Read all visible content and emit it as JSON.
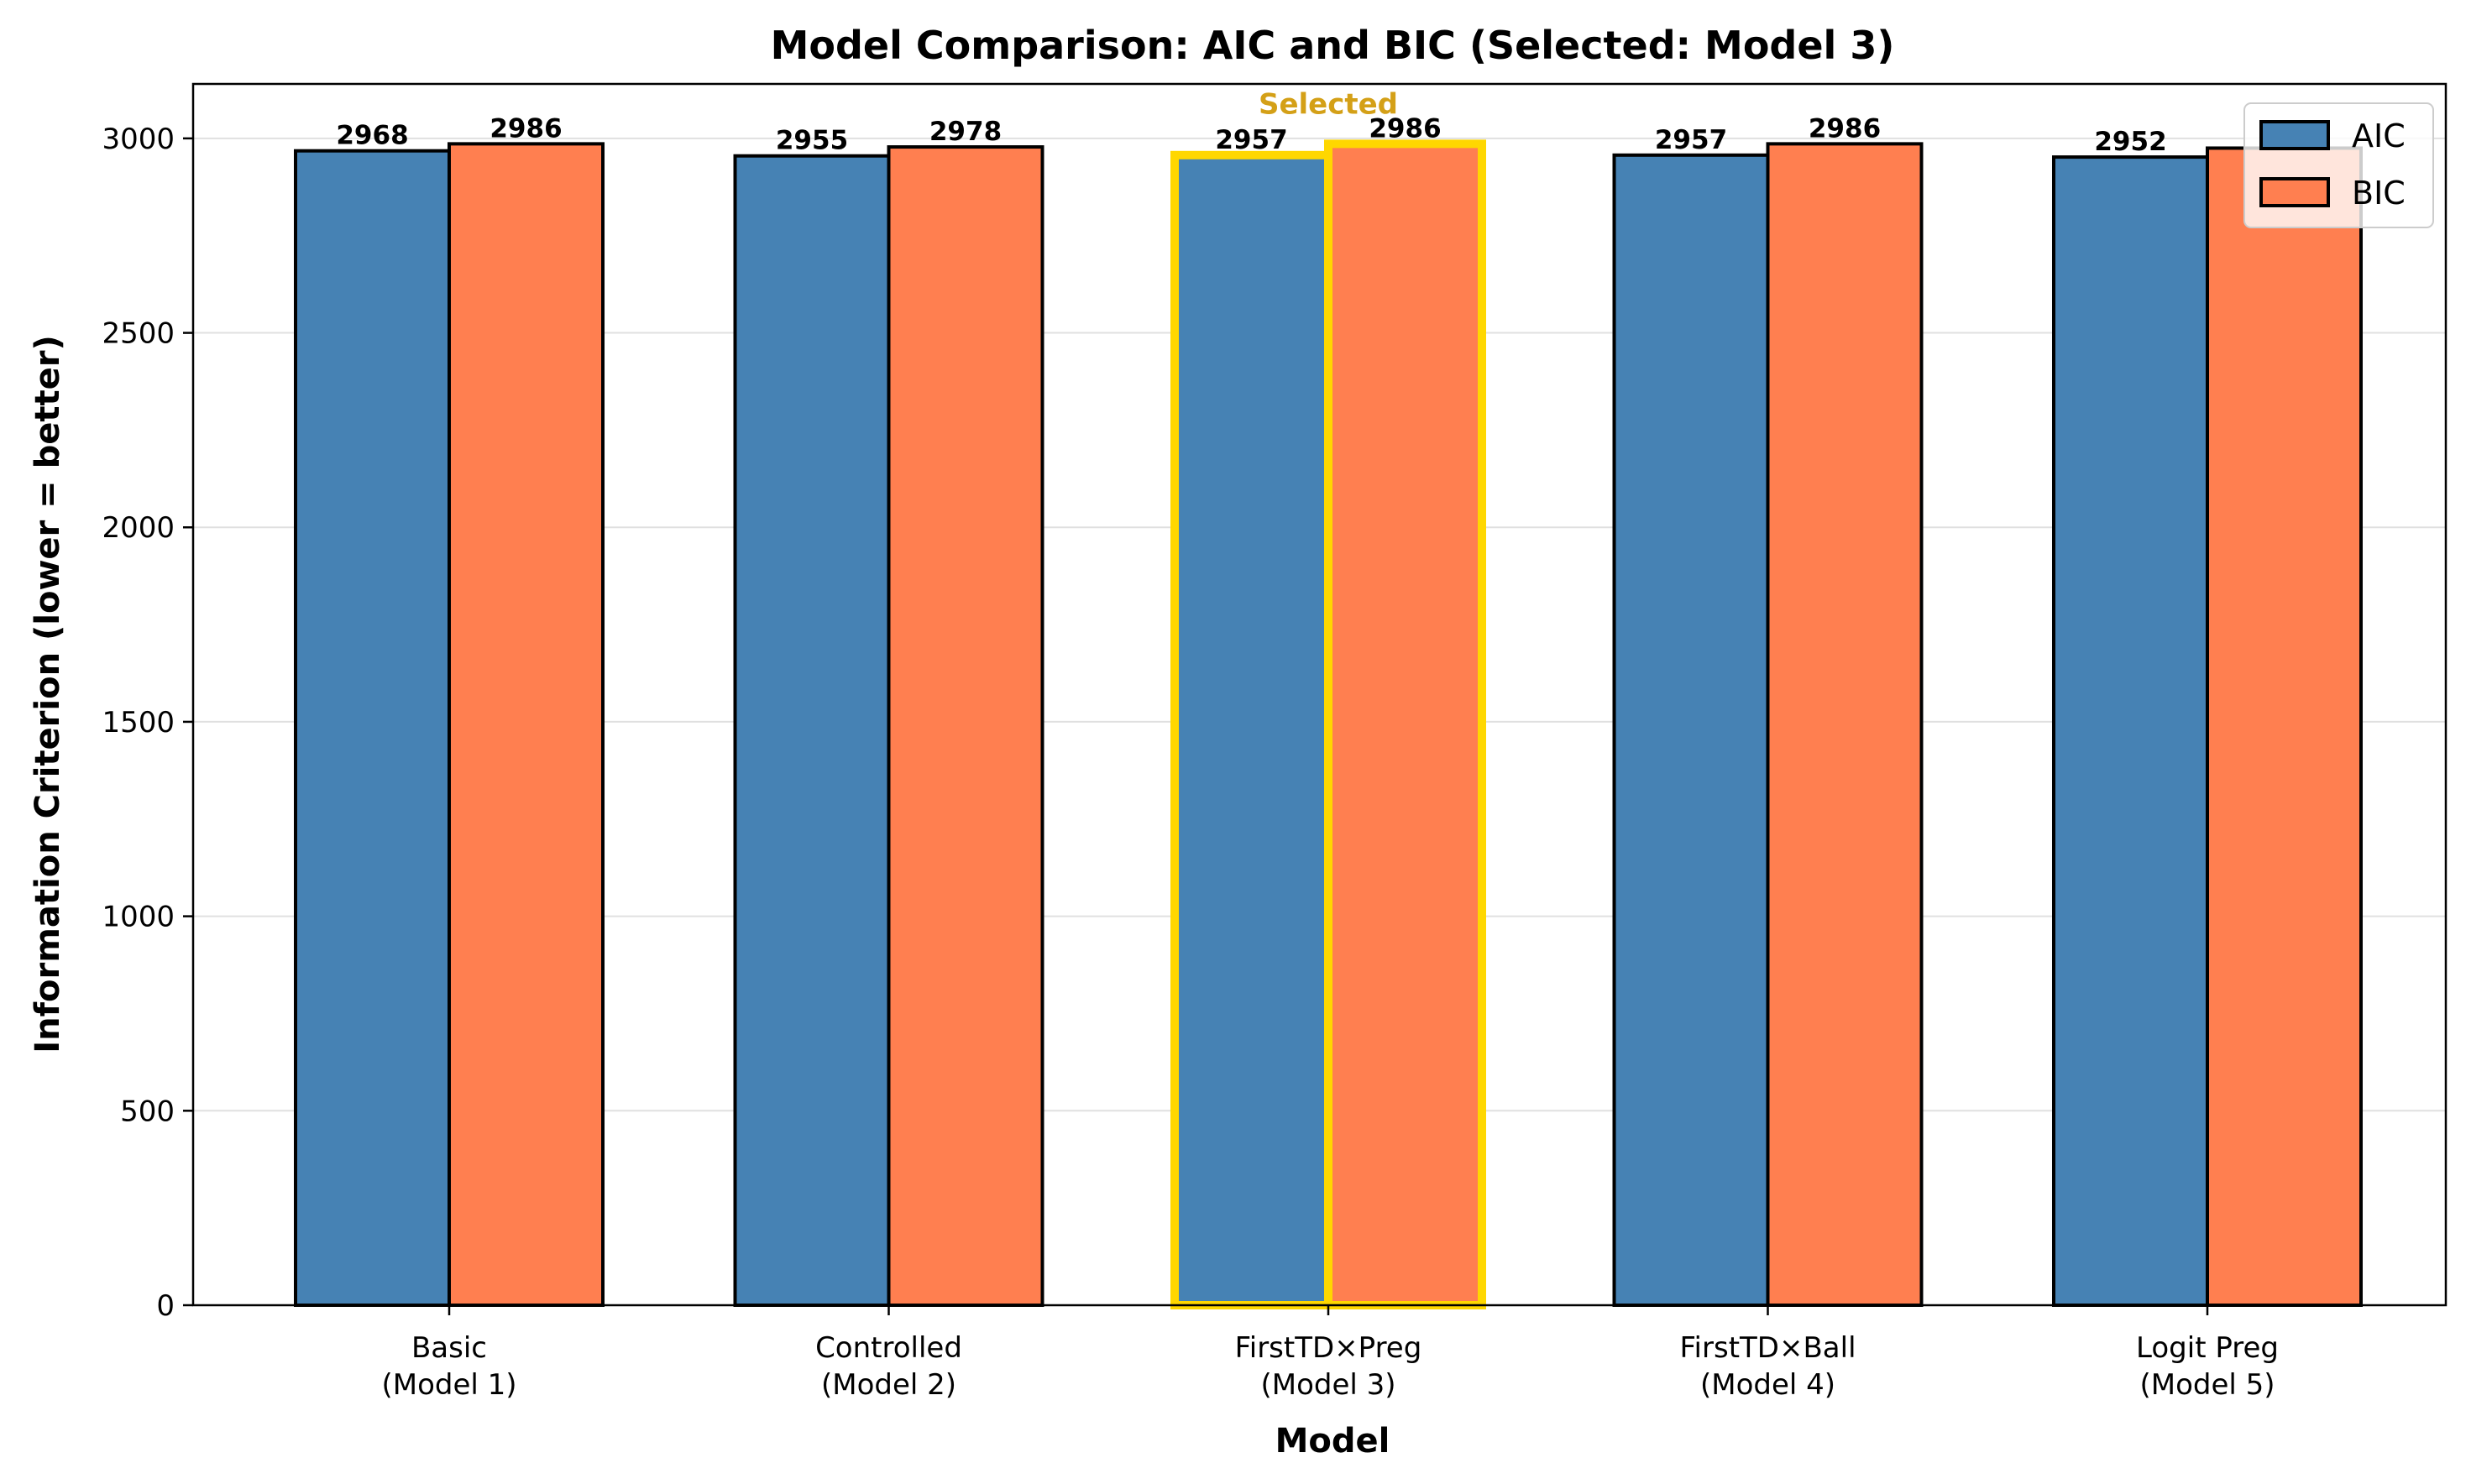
{
  "chart_data": {
    "type": "bar",
    "title": "Model Comparison: AIC and BIC (Selected: Model 3)",
    "xlabel": "Model",
    "ylabel": "Information Criterion (lower = better)",
    "categories": [
      [
        "Basic",
        "(Model 1)"
      ],
      [
        "Controlled",
        "(Model 2)"
      ],
      [
        "FirstTD×Preg",
        "(Model 3)"
      ],
      [
        "FirstTD×Ball",
        "(Model 4)"
      ],
      [
        "Logit Preg",
        "(Model 5)"
      ]
    ],
    "series": [
      {
        "name": "AIC",
        "color": "#4682b4",
        "values": [
          2968,
          2955,
          2957,
          2957,
          2952
        ],
        "labels": [
          "2968",
          "2955",
          "2957",
          "2957",
          "2952"
        ]
      },
      {
        "name": "BIC",
        "color": "#ff7f50",
        "values": [
          2986,
          2978,
          2986,
          2986,
          2975
        ],
        "labels": [
          "2986",
          "2978",
          "2986",
          "2986",
          ""
        ]
      }
    ],
    "ylim": [
      0,
      3140
    ],
    "yticks": [
      0,
      500,
      1000,
      1500,
      2000,
      2500,
      3000
    ],
    "grid": "y",
    "legend_position": "top-right",
    "selected_index": 2,
    "selected_color": "#ffd700",
    "annotation": {
      "text": "Selected",
      "color": "#d4a017"
    }
  }
}
